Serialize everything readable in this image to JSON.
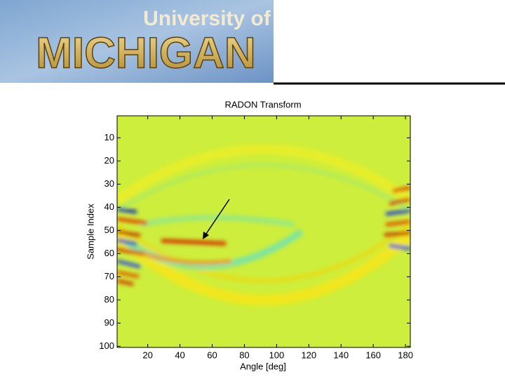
{
  "logo": {
    "line1": "University of",
    "line2": "MICHIGAN"
  },
  "chart_data": {
    "type": "image",
    "title": "RADON Transform",
    "x_label": "Angle [deg]",
    "y_label": "Sample Index",
    "xlim": [
      1,
      183
    ],
    "ylim": [
      0.5,
      100.5
    ],
    "y_reversed": true,
    "xticks": [
      20,
      40,
      60,
      80,
      100,
      120,
      140,
      160,
      180
    ],
    "yticks": [
      10,
      20,
      30,
      40,
      50,
      60,
      70,
      80,
      90,
      100
    ]
  }
}
